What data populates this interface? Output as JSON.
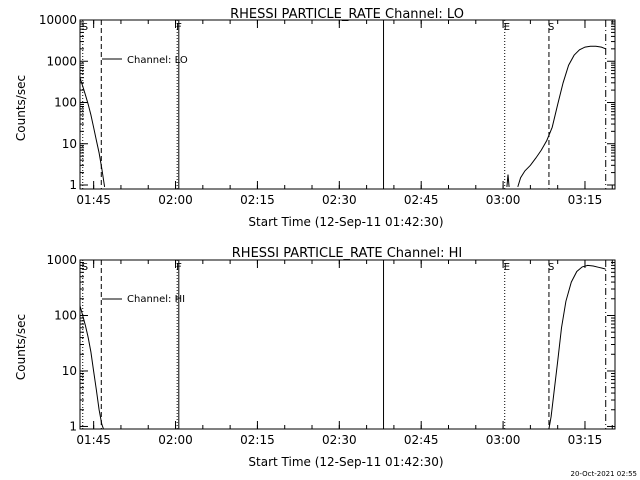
{
  "footer": {
    "timestamp": "20-Oct-2021 02:55"
  },
  "chart_data": [
    {
      "type": "line",
      "title": "RHESSI PARTICLE_RATE Channel: LO",
      "xlabel": "Start Time (12-Sep-11 01:42:30)",
      "ylabel": "Counts/sec",
      "yscale": "log",
      "xlim_minutes": [
        0,
        98
      ],
      "ylim": [
        0.8,
        10000
      ],
      "x_tick_minutes": [
        2.5,
        17.5,
        32.5,
        47.5,
        62.5,
        77.5,
        92.5
      ],
      "x_tick_labels": [
        "01:45",
        "02:00",
        "02:15",
        "02:30",
        "02:45",
        "03:00",
        "03:15"
      ],
      "y_tick_values": [
        1,
        10,
        100,
        1000,
        10000
      ],
      "y_tick_labels": [
        "1",
        "10",
        "100",
        "1000",
        "10000"
      ],
      "legend": {
        "placement": "top-left",
        "entries": [
          "Channel: LO"
        ]
      },
      "markers": [
        {
          "label": "S",
          "minute": 0.5,
          "style": "dotted"
        },
        {
          "label": "",
          "minute": 3.9,
          "style": "dashed"
        },
        {
          "label": "F",
          "minute": 17.8,
          "style": "dotted"
        },
        {
          "label": "",
          "minute": 18.1,
          "style": "solid"
        },
        {
          "label": "",
          "minute": 55.6,
          "style": "solid"
        },
        {
          "label": "E",
          "minute": 77.8,
          "style": "dotted"
        },
        {
          "label": "S",
          "minute": 85.9,
          "style": "dashed"
        },
        {
          "label": "",
          "minute": 96.3,
          "style": "dashdot"
        }
      ],
      "series": [
        {
          "segments": [
            {
              "x": [
                0,
                0.5,
                1,
                1.5,
                2,
                2.5,
                3,
                3.5,
                4,
                4.5
              ],
              "y": [
                400,
                250,
                150,
                90,
                50,
                25,
                12,
                6,
                2.5,
                0.9
              ]
            },
            {
              "x": [
                78.2,
                78.4,
                78.6
              ],
              "y": [
                0.9,
                1.8,
                0.9
              ]
            },
            {
              "x": [
                80.2,
                80.7,
                81.5,
                82.5,
                83.5,
                84.5,
                85.5,
                86.5,
                87.5,
                88.5,
                89.5,
                90.5,
                91.5,
                92.5,
                93.5,
                94.5,
                95.5,
                96.3
              ],
              "y": [
                0.9,
                1.5,
                2.2,
                3,
                4.5,
                7,
                12,
                25,
                90,
                300,
                800,
                1400,
                1900,
                2200,
                2300,
                2300,
                2200,
                2000
              ]
            }
          ]
        }
      ]
    },
    {
      "type": "line",
      "title": "RHESSI PARTICLE_RATE Channel: HI",
      "xlabel": "Start Time (12-Sep-11 01:42:30)",
      "ylabel": "Counts/sec",
      "yscale": "log",
      "xlim_minutes": [
        0,
        98
      ],
      "ylim": [
        0.9,
        1000
      ],
      "x_tick_minutes": [
        2.5,
        17.5,
        32.5,
        47.5,
        62.5,
        77.5,
        92.5
      ],
      "x_tick_labels": [
        "01:45",
        "02:00",
        "02:15",
        "02:30",
        "02:45",
        "03:00",
        "03:15"
      ],
      "y_tick_values": [
        1,
        10,
        100,
        1000
      ],
      "y_tick_labels": [
        "1",
        "10",
        "100",
        "1000"
      ],
      "legend": {
        "placement": "top-left",
        "entries": [
          "Channel: HI"
        ]
      },
      "markers": [
        {
          "label": "S",
          "minute": 0.5,
          "style": "dotted"
        },
        {
          "label": "",
          "minute": 3.9,
          "style": "dashed"
        },
        {
          "label": "F",
          "minute": 17.8,
          "style": "dotted"
        },
        {
          "label": "",
          "minute": 18.1,
          "style": "solid"
        },
        {
          "label": "",
          "minute": 55.6,
          "style": "solid"
        },
        {
          "label": "E",
          "minute": 77.8,
          "style": "dotted"
        },
        {
          "label": "S",
          "minute": 85.9,
          "style": "dashed"
        },
        {
          "label": "",
          "minute": 96.3,
          "style": "dashdot"
        }
      ],
      "series": [
        {
          "segments": [
            {
              "x": [
                0,
                0.5,
                1,
                1.5,
                2,
                2.5,
                3,
                3.5,
                4,
                4.3
              ],
              "y": [
                150,
                100,
                65,
                40,
                22,
                10,
                4.5,
                2,
                1.1,
                0.9
              ]
            },
            {
              "x": [
                85.9,
                86.3,
                86.8,
                87.5,
                88.2,
                89,
                90,
                91,
                92,
                93,
                94,
                95,
                96,
                96.3
              ],
              "y": [
                0.9,
                1.5,
                4,
                15,
                60,
                180,
                400,
                620,
                750,
                800,
                780,
                740,
                700,
                680
              ]
            }
          ]
        }
      ]
    }
  ]
}
